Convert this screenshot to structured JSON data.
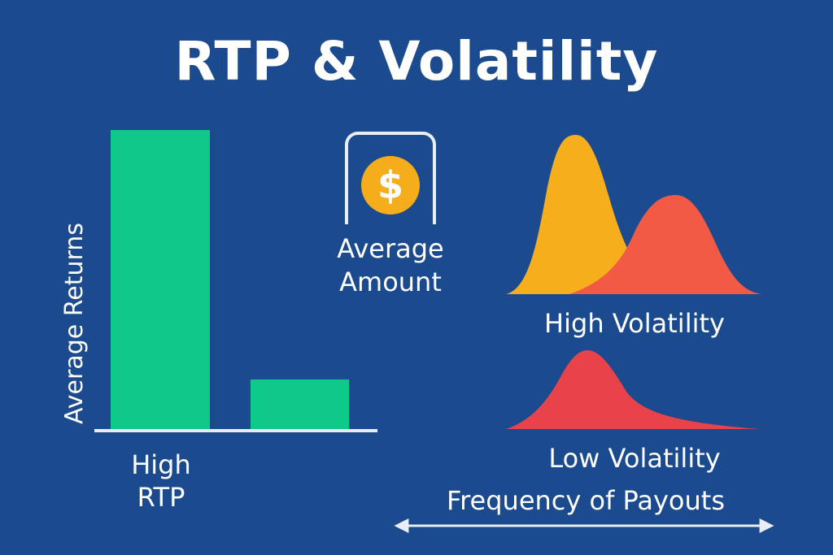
{
  "title": "RTP & Volatility",
  "rtp_chart": {
    "y_axis_label": "Average Returns",
    "category_label": "High\nRTP",
    "colors": {
      "bar": "#0ec98a",
      "axis": "#e7edf6"
    }
  },
  "average_amount": {
    "icon": "dollar-coin-icon",
    "coin_symbol": "$",
    "label": "Average\nAmount",
    "colors": {
      "coin": "#f6ad1c",
      "frame": "#e9eef6"
    }
  },
  "volatility": {
    "high_label": "High Volatility",
    "low_label": "Low Volatility",
    "axis_label": "Frequency of Payouts",
    "colors": {
      "orange": "#f7ae1d",
      "red": "#f25a45",
      "low_red": "#e8424b"
    }
  },
  "colors": {
    "background": "#1b4a8f",
    "text": "#ffffff"
  }
}
